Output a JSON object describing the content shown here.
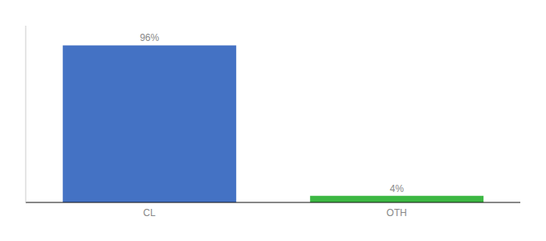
{
  "chart_data": {
    "type": "bar",
    "categories": [
      "CL",
      "OTH"
    ],
    "values": [
      96,
      4
    ],
    "value_labels": [
      "96%",
      "4%"
    ],
    "data_labels": true,
    "colors": [
      "#4472c4",
      "#3cb843"
    ],
    "ylim": [
      0,
      108
    ],
    "tick_labels": "x",
    "grid": false
  }
}
